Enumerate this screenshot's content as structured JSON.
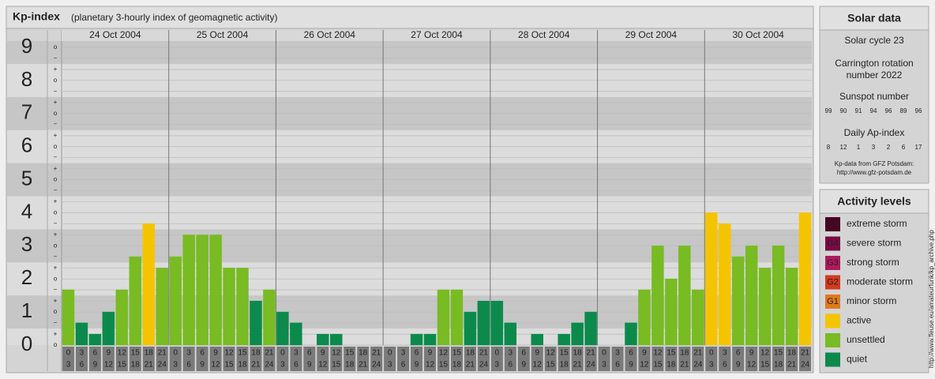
{
  "chart_data": {
    "type": "bar",
    "title": "Kp-index",
    "subtitle": "(planetary 3-hourly index of geomagnetic activity)",
    "days": [
      "24 Oct 2004",
      "25 Oct 2004",
      "26 Oct 2004",
      "27 Oct 2004",
      "28 Oct 2004",
      "29 Oct 2004",
      "30 Oct 2004"
    ],
    "hour_ranges": [
      [
        0,
        3
      ],
      [
        3,
        6
      ],
      [
        6,
        9
      ],
      [
        9,
        12
      ],
      [
        12,
        15
      ],
      [
        15,
        18
      ],
      [
        18,
        21
      ],
      [
        21,
        24
      ]
    ],
    "values": [
      1.67,
      0.67,
      0.33,
      1,
      1.67,
      2.67,
      3.67,
      2.33,
      2.67,
      3.33,
      3.33,
      3.33,
      2.33,
      2.33,
      1.33,
      1.67,
      1,
      0.67,
      0,
      0.33,
      0.33,
      0,
      0,
      0,
      0,
      0,
      0.33,
      0.33,
      1.67,
      1.67,
      1,
      1.33,
      1.33,
      0.67,
      0,
      0.33,
      0,
      0.33,
      0.67,
      1,
      0,
      0,
      0.67,
      1.67,
      3,
      2,
      3,
      1.67,
      4,
      3.67,
      2.67,
      3,
      2.33,
      3,
      2.33,
      4
    ],
    "colors": [
      "#78bb23",
      "#0b8a4c",
      "#0b8a4c",
      "#0b8a4c",
      "#78bb23",
      "#78bb23",
      "#f5c400",
      "#78bb23",
      "#78bb23",
      "#78bb23",
      "#78bb23",
      "#78bb23",
      "#78bb23",
      "#78bb23",
      "#0b8a4c",
      "#78bb23",
      "#0b8a4c",
      "#0b8a4c",
      "#0b8a4c",
      "#0b8a4c",
      "#0b8a4c",
      "#0b8a4c",
      "#0b8a4c",
      "#0b8a4c",
      "#0b8a4c",
      "#0b8a4c",
      "#0b8a4c",
      "#0b8a4c",
      "#78bb23",
      "#78bb23",
      "#0b8a4c",
      "#0b8a4c",
      "#0b8a4c",
      "#0b8a4c",
      "#0b8a4c",
      "#0b8a4c",
      "#0b8a4c",
      "#0b8a4c",
      "#0b8a4c",
      "#0b8a4c",
      "#0b8a4c",
      "#0b8a4c",
      "#0b8a4c",
      "#78bb23",
      "#78bb23",
      "#78bb23",
      "#78bb23",
      "#78bb23",
      "#f5c400",
      "#f5c400",
      "#78bb23",
      "#78bb23",
      "#78bb23",
      "#78bb23",
      "#78bb23",
      "#f5c400"
    ],
    "ylim": [
      0,
      9
    ],
    "yticks": [
      0,
      1,
      2,
      3,
      4,
      5,
      6,
      7,
      8,
      9
    ],
    "minor_ticks": [
      {
        "value": 9,
        "label": "o"
      },
      {
        "value": 8.67,
        "label": "−"
      },
      {
        "value": 8.33,
        "label": "+"
      },
      {
        "value": 8,
        "label": "o"
      },
      {
        "value": 7.67,
        "label": "−"
      },
      {
        "value": 7.33,
        "label": "+"
      },
      {
        "value": 7,
        "label": "o"
      },
      {
        "value": 6.67,
        "label": "−"
      },
      {
        "value": 6.33,
        "label": "+"
      },
      {
        "value": 6,
        "label": "o"
      },
      {
        "value": 5.67,
        "label": "−"
      },
      {
        "value": 5.33,
        "label": "+"
      },
      {
        "value": 5,
        "label": "o"
      },
      {
        "value": 4.67,
        "label": "−"
      },
      {
        "value": 4.33,
        "label": "+"
      },
      {
        "value": 4,
        "label": "o"
      },
      {
        "value": 3.67,
        "label": "−"
      },
      {
        "value": 3.33,
        "label": "+"
      },
      {
        "value": 3,
        "label": "o"
      },
      {
        "value": 2.67,
        "label": "−"
      },
      {
        "value": 2.33,
        "label": "+"
      },
      {
        "value": 2,
        "label": "o"
      },
      {
        "value": 1.67,
        "label": "−"
      },
      {
        "value": 1.33,
        "label": "+"
      },
      {
        "value": 1,
        "label": "o"
      },
      {
        "value": 0.67,
        "label": "−"
      },
      {
        "value": 0.33,
        "label": "+"
      },
      {
        "value": 0,
        "label": "o"
      }
    ],
    "grid": true
  },
  "solar_data": {
    "title": "Solar data",
    "cycle": "Solar cycle 23",
    "carrington": [
      "Carrington rotation",
      "number 2022"
    ],
    "sunspot_title": "Sunspot number",
    "sunspot": [
      99,
      90,
      91,
      94,
      96,
      89,
      96
    ],
    "ap_title": "Daily Ap-index",
    "ap": [
      8,
      12,
      1,
      3,
      2,
      6,
      17
    ],
    "source": "Kp-data from GFZ Potsdam:",
    "source_url": "http://www.gfz-potsdam.de"
  },
  "activity_levels": {
    "title": "Activity levels",
    "items": [
      {
        "badge": "G5",
        "label": "extreme storm",
        "color": "#4a0022"
      },
      {
        "badge": "G4",
        "label": "severe storm",
        "color": "#7a0a44"
      },
      {
        "badge": "G3",
        "label": "strong storm",
        "color": "#b0195e"
      },
      {
        "badge": "G2",
        "label": "moderate storm",
        "color": "#d43a1c"
      },
      {
        "badge": "G1",
        "label": "minor storm",
        "color": "#e07a1a"
      },
      {
        "badge": null,
        "label": "active",
        "color": "#f5c400"
      },
      {
        "badge": null,
        "label": "unsettled",
        "color": "#78bb23"
      },
      {
        "badge": null,
        "label": "quiet",
        "color": "#0b8a4c"
      }
    ]
  },
  "credit": "http://www.fleuse.eu/amateurfunk/kp_archive.php"
}
